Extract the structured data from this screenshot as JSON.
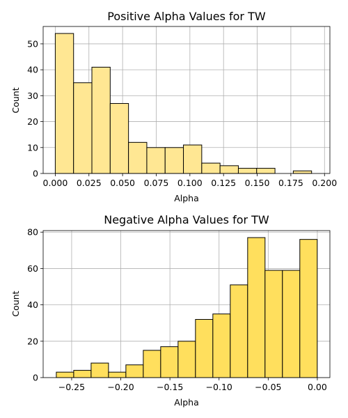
{
  "chart_data": [
    {
      "type": "bar",
      "title": "Positive Alpha Values for TW",
      "xlabel": "Alpha",
      "ylabel": "Count",
      "xlim": [
        -0.009,
        0.204
      ],
      "ylim": [
        0,
        56.7
      ],
      "xticks": [
        0.0,
        0.025,
        0.05,
        0.075,
        0.1,
        0.125,
        0.15,
        0.175,
        0.2
      ],
      "xtick_labels": [
        "0.000",
        "0.025",
        "0.050",
        "0.075",
        "0.100",
        "0.125",
        "0.150",
        "0.175",
        "0.200"
      ],
      "yticks": [
        0,
        10,
        20,
        30,
        40,
        50
      ],
      "bin_edges": [
        0.0,
        0.0136,
        0.0272,
        0.0408,
        0.0544,
        0.068,
        0.0816,
        0.0952,
        0.1088,
        0.1224,
        0.136,
        0.1496,
        0.1632,
        0.1768,
        0.1904,
        0.204
      ],
      "values": [
        54,
        35,
        41,
        27,
        12,
        10,
        10,
        11,
        4,
        3,
        2,
        2,
        0,
        1,
        0
      ],
      "grid": true,
      "color": "#ffe793"
    },
    {
      "type": "bar",
      "title": "Negative Alpha Values for TW",
      "xlabel": "Alpha",
      "ylabel": "Count",
      "xlim": [
        -0.279,
        0.0128
      ],
      "ylim": [
        0,
        80.85
      ],
      "xticks": [
        -0.25,
        -0.2,
        -0.15,
        -0.1,
        -0.05,
        0.0
      ],
      "xtick_labels": [
        "−0.25",
        "−0.20",
        "−0.15",
        "−0.10",
        "−0.05",
        "0.00"
      ],
      "yticks": [
        0,
        20,
        40,
        60,
        80
      ],
      "bin_edges": [
        -0.2656,
        -0.2479,
        -0.2302,
        -0.2125,
        -0.1948,
        -0.1771,
        -0.1594,
        -0.1417,
        -0.124,
        -0.1063,
        -0.0886,
        -0.0709,
        -0.0532,
        -0.0355,
        -0.0178,
        -0.0001
      ],
      "values": [
        3,
        4,
        8,
        3,
        7,
        15,
        17,
        20,
        32,
        35,
        51,
        77,
        59,
        59,
        76
      ],
      "grid": true,
      "color": "#ffdf5d"
    }
  ]
}
